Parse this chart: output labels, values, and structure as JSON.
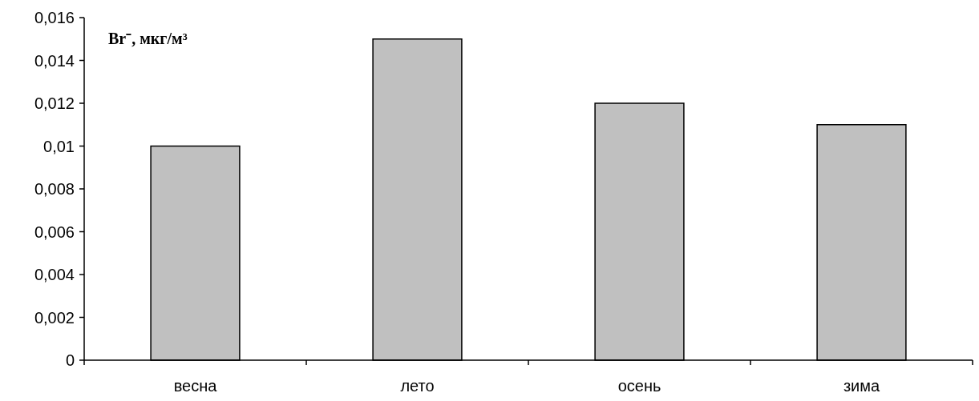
{
  "chart_data": {
    "type": "bar",
    "ylabel": "Br⁻, мкг/м³",
    "categories": [
      "весна",
      "лето",
      "осень",
      "зима"
    ],
    "values": [
      0.01,
      0.015,
      0.012,
      0.011
    ],
    "color": "#c0c0c0",
    "ylim": [
      0,
      0.016
    ],
    "yticks": [
      0,
      {
        "value": 0.002,
        "label": "0,002"
      },
      {
        "value": 0.004,
        "label": "0,004"
      },
      {
        "value": 0.006,
        "label": "0,006"
      },
      {
        "value": 0.008,
        "label": "0,008"
      },
      {
        "value": 0.01,
        "label": "0,01"
      },
      {
        "value": 0.012,
        "label": "0,012"
      },
      {
        "value": 0.014,
        "label": "0,014"
      },
      {
        "value": 0.016,
        "label": "0,016"
      }
    ],
    "grid": false
  }
}
